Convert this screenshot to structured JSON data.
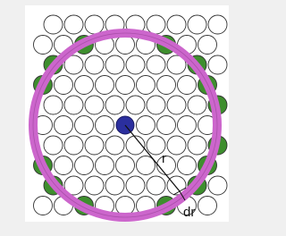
{
  "labels": {
    "radius": "r",
    "shell_width": "dr"
  }
}
